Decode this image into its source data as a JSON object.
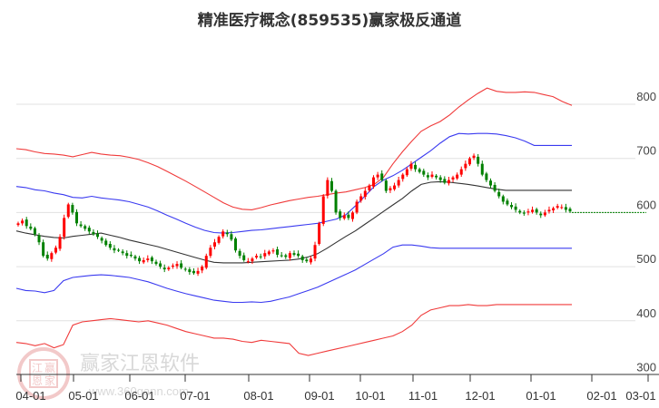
{
  "title": "精准医疗概念(859535)赢家极反通道",
  "watermark": {
    "brand": "赢家江恩软件",
    "url": "www.360gann.com",
    "seal_chars": [
      "江",
      "赢",
      "恩",
      "家"
    ]
  },
  "colors": {
    "outer_band": "#f03a3a",
    "inner_band": "#3a3af0",
    "middle_line": "#333333",
    "up_candle": "#ff0000",
    "down_candle": "#008000",
    "grid": "#e0e0e0",
    "axis": "#333333",
    "forecast_line": "#008000"
  },
  "chart_data": {
    "type": "candlestick",
    "title": "精准医疗概念(859535)赢家极反通道",
    "xlabel": "",
    "ylabel": "",
    "ylim": [
      300,
      850
    ],
    "y_ticks": [
      300,
      400,
      500,
      600,
      700,
      800
    ],
    "x_ticks": [
      "04-01",
      "05-01",
      "06-01",
      "07-01",
      "08-01",
      "09-01",
      "10-01",
      "11-01",
      "12-01",
      "01-01",
      "02-01",
      "03-01"
    ],
    "grid": true,
    "legend": null,
    "series": [
      {
        "name": "outer_upper_band",
        "color": "red",
        "values": [
          718,
          716,
          712,
          709,
          708,
          706,
          703,
          707,
          711,
          708,
          706,
          705,
          702,
          698,
          692,
          685,
          676,
          667,
          658,
          648,
          638,
          628,
          618,
          610,
          606,
          605,
          609,
          614,
          618,
          622,
          625,
          628,
          630,
          633,
          636,
          638,
          642,
          646,
          652,
          665,
          690,
          712,
          732,
          750,
          760,
          768,
          780,
          795,
          808,
          820,
          830,
          824,
          822,
          822,
          823,
          822,
          818,
          814,
          805,
          798
        ]
      },
      {
        "name": "inner_upper_band",
        "color": "blue",
        "values": [
          648,
          646,
          642,
          640,
          636,
          633,
          628,
          627,
          630,
          627,
          625,
          623,
          620,
          615,
          610,
          603,
          595,
          588,
          580,
          573,
          567,
          563,
          562,
          563,
          565,
          567,
          568,
          570,
          572,
          574,
          576,
          578,
          580,
          584,
          588,
          596,
          612,
          630,
          648,
          660,
          668,
          678,
          690,
          702,
          714,
          728,
          740,
          746,
          745,
          746,
          746,
          745,
          742,
          738,
          732,
          724,
          724,
          724,
          724,
          724
        ]
      },
      {
        "name": "middle_line",
        "color": "black",
        "values": [
          566,
          562,
          559,
          556,
          554,
          553,
          556,
          558,
          560,
          562,
          558,
          554,
          549,
          545,
          541,
          537,
          532,
          527,
          522,
          517,
          512,
          508,
          507,
          507,
          507,
          508,
          509,
          510,
          511,
          512,
          514,
          518,
          524,
          534,
          545,
          556,
          566,
          578,
          590,
          602,
          614,
          626,
          640,
          652,
          656,
          657,
          656,
          654,
          652,
          649,
          646,
          643,
          641,
          641,
          641,
          641,
          641,
          641,
          641,
          641
        ]
      },
      {
        "name": "inner_lower_band",
        "color": "blue",
        "values": [
          460,
          456,
          455,
          452,
          456,
          474,
          480,
          482,
          484,
          485,
          484,
          482,
          480,
          476,
          472,
          466,
          460,
          455,
          450,
          446,
          442,
          438,
          436,
          434,
          434,
          435,
          434,
          436,
          440,
          444,
          450,
          456,
          462,
          470,
          478,
          486,
          494,
          504,
          514,
          524,
          536,
          540,
          540,
          538,
          535,
          534,
          534,
          534,
          534,
          534,
          534,
          534,
          534,
          534,
          534,
          534,
          534,
          534,
          534,
          534
        ]
      },
      {
        "name": "outer_lower_band",
        "color": "red",
        "values": [
          360,
          358,
          354,
          358,
          350,
          356,
          392,
          398,
          400,
          402,
          404,
          402,
          400,
          398,
          400,
          396,
          392,
          386,
          380,
          376,
          372,
          368,
          368,
          366,
          362,
          360,
          364,
          362,
          360,
          358,
          340,
          336,
          340,
          344,
          348,
          352,
          356,
          360,
          364,
          368,
          372,
          380,
          392,
          410,
          420,
          424,
          428,
          428,
          430,
          428,
          428,
          430,
          430,
          430,
          430,
          430,
          430,
          430,
          430,
          430
        ]
      }
    ],
    "candles_summary": {
      "start_date": "04-01",
      "end_date": "01-20 (approx)",
      "approx_closes": [
        580,
        585,
        575,
        570,
        560,
        545,
        520,
        515,
        525,
        535,
        555,
        590,
        615,
        600,
        580,
        575,
        570,
        565,
        560,
        555,
        548,
        540,
        535,
        530,
        530,
        525,
        520,
        520,
        515,
        510,
        512,
        515,
        510,
        505,
        500,
        495,
        498,
        502,
        505,
        498,
        495,
        490,
        488,
        492,
        500,
        520,
        535,
        545,
        555,
        565,
        560,
        550,
        530,
        520,
        512,
        510,
        515,
        520,
        518,
        525,
        528,
        530,
        522,
        520,
        518,
        525,
        522,
        520,
        512,
        510,
        515,
        540,
        580,
        630,
        660,
        640,
        600,
        590,
        595,
        590,
        600,
        620,
        630,
        640,
        650,
        665,
        670,
        660,
        640,
        645,
        650,
        660,
        670,
        680,
        690,
        680,
        675,
        670,
        665,
        670,
        665,
        660,
        655,
        660,
        665,
        670,
        680,
        690,
        700,
        705,
        690,
        670,
        660,
        650,
        640,
        630,
        620,
        615,
        610,
        605,
        600,
        598,
        602,
        605,
        600,
        595,
        600,
        605,
        608,
        612,
        610,
        605,
        602
      ]
    },
    "forecast_line": {
      "value": 600,
      "from": "last candle",
      "to": "03-01",
      "style": "dotted"
    }
  }
}
